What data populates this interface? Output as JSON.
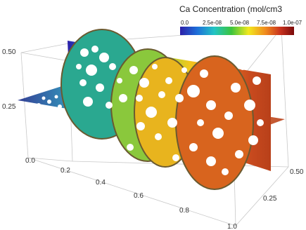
{
  "colorbar": {
    "title": "Ca Concentration (mol/cm3",
    "ticks": [
      "0.0",
      "2.5e-08",
      "5.0e-08",
      "7.5e-08",
      "1.0e-07"
    ],
    "range": [
      0.0,
      1e-07
    ],
    "colors": [
      "#2b1fa8",
      "#1e6fd9",
      "#22c4c4",
      "#3cc43c",
      "#f2e81e",
      "#f08a1e",
      "#c8321e",
      "#7a0a0a"
    ]
  },
  "axes": {
    "x_ticks": [
      "0.0",
      "0.2",
      "0.4",
      "0.6",
      "0.8",
      "1.0"
    ],
    "y_ticks": [
      "0.25",
      "0.50"
    ],
    "z_ticks": [
      "0.25",
      "0.50"
    ]
  }
}
